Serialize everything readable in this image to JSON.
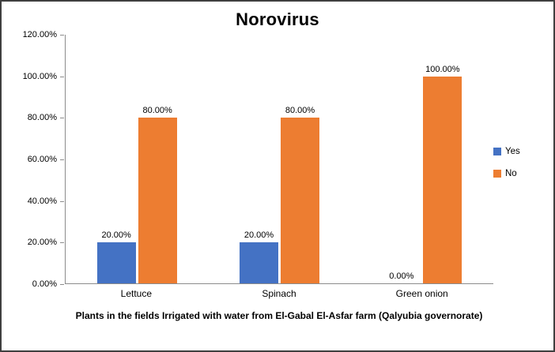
{
  "chart_data": {
    "type": "bar",
    "title": "Norovirus",
    "xlabel": "Plants in the fields Irrigated with water from El-Gabal El-Asfar farm (Qalyubia governorate)",
    "ylabel": "",
    "categories": [
      "Lettuce",
      "Spinach",
      "Green onion"
    ],
    "series": [
      {
        "name": "Yes",
        "color": "#4472C4",
        "values": [
          20,
          20,
          0
        ],
        "labels": [
          "20.00%",
          "20.00%",
          "0.00%"
        ]
      },
      {
        "name": "No",
        "color": "#ED7D31",
        "values": [
          80,
          80,
          100
        ],
        "labels": [
          "80.00%",
          "80.00%",
          "100.00%"
        ]
      }
    ],
    "ylim": [
      0,
      120
    ],
    "ytick_values": [
      0,
      20,
      40,
      60,
      80,
      100,
      120
    ],
    "yticks": [
      "0.00%",
      "20.00%",
      "40.00%",
      "60.00%",
      "80.00%",
      "100.00%",
      "120.00%"
    ],
    "grid": false,
    "legend_position": "right",
    "accent_colors": {
      "yes": "#4472C4",
      "no": "#ED7D31"
    }
  }
}
